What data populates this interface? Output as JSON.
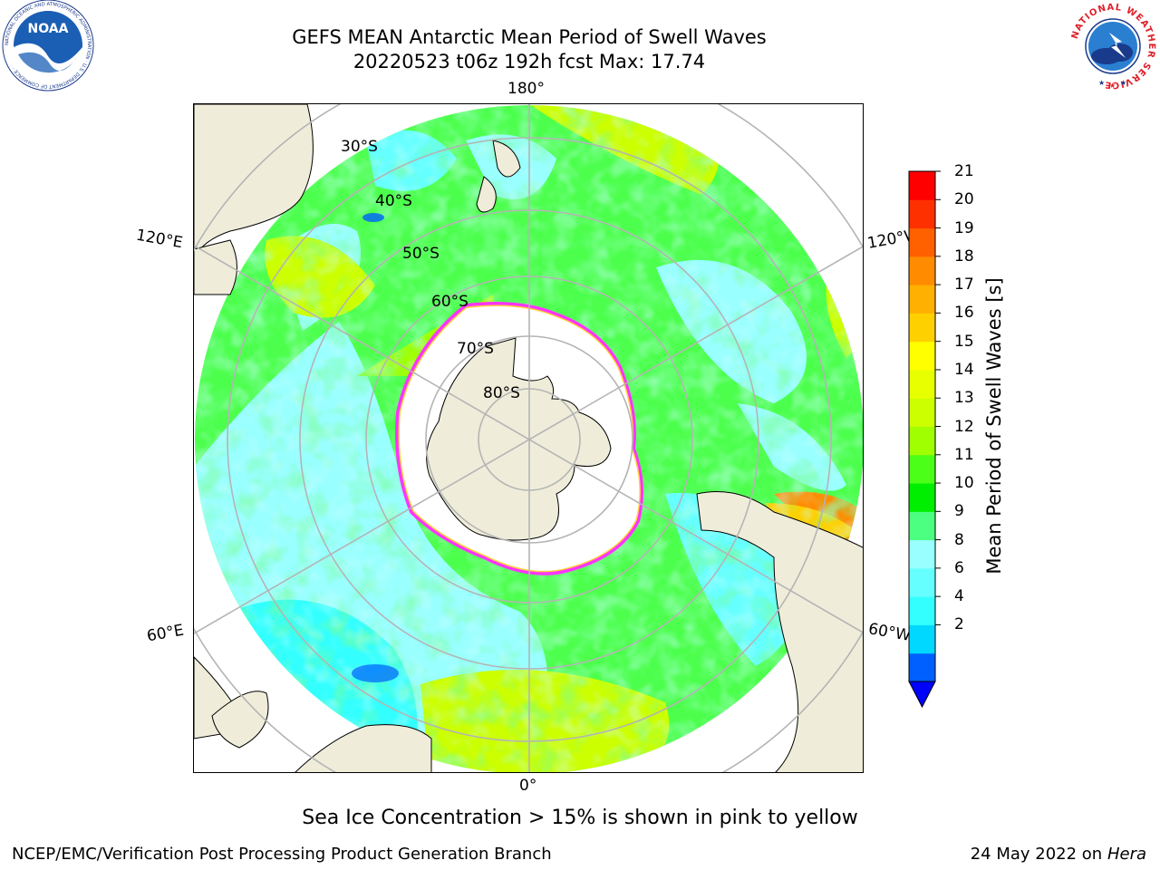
{
  "header": {
    "title_line1": "GEFS MEAN Antarctic Mean Period of Swell Waves",
    "title_line2": "20220523 t06z 192h fcst   Max: 17.74"
  },
  "logos": {
    "noaa_text": "NOAA",
    "noaa_ring": "NATIONAL OCEANIC AND ATMOSPHERIC ADMINISTRATION · U.S. DEPARTMENT OF COMMERCE ·",
    "nws_ring": "NATIONAL WEATHER SERVICE"
  },
  "map": {
    "longitude_labels": {
      "top": "180°",
      "bottom": "0°",
      "upper_left": "120°E",
      "upper_right": "120°W",
      "lower_left": "60°E",
      "lower_right": "60°W"
    },
    "latitude_labels": [
      "30°S",
      "40°S",
      "50°S",
      "60°S",
      "70°S",
      "80°S"
    ],
    "colors": {
      "ocean_dominant": "#4cff4c",
      "land": "#efedda",
      "sea_ice": "#ffffff",
      "ice_edge_pink": "#ff33ff",
      "ice_edge_yellow": "#ffd23c",
      "graticule": "#b4b4b4"
    }
  },
  "colorbar": {
    "title": "Mean Period of Swell Waves [s]",
    "ticks": [
      "21",
      "20",
      "19",
      "18",
      "17",
      "16",
      "15",
      "14",
      "13",
      "12",
      "11",
      "10",
      "9",
      "8",
      "6",
      "4",
      "2"
    ],
    "colors_bottom_to_top": [
      "#0060ff",
      "#00d8ff",
      "#33ffff",
      "#66ffff",
      "#99ffff",
      "#4cff80",
      "#00ee00",
      "#4cff19",
      "#a0ff00",
      "#ccff00",
      "#e8ff00",
      "#ffff00",
      "#ffd000",
      "#ffb000",
      "#ff8c00",
      "#ff6000",
      "#ff3000",
      "#ff0000"
    ],
    "extend_min_color": "#0000ff"
  },
  "caption": "Sea Ice Concentration > 15% is shown in pink to yellow",
  "footer": {
    "left": "NCEP/EMC/Verification Post Processing Product Generation Branch",
    "right_date": "24 May 2022 on",
    "right_host": "Hera"
  }
}
